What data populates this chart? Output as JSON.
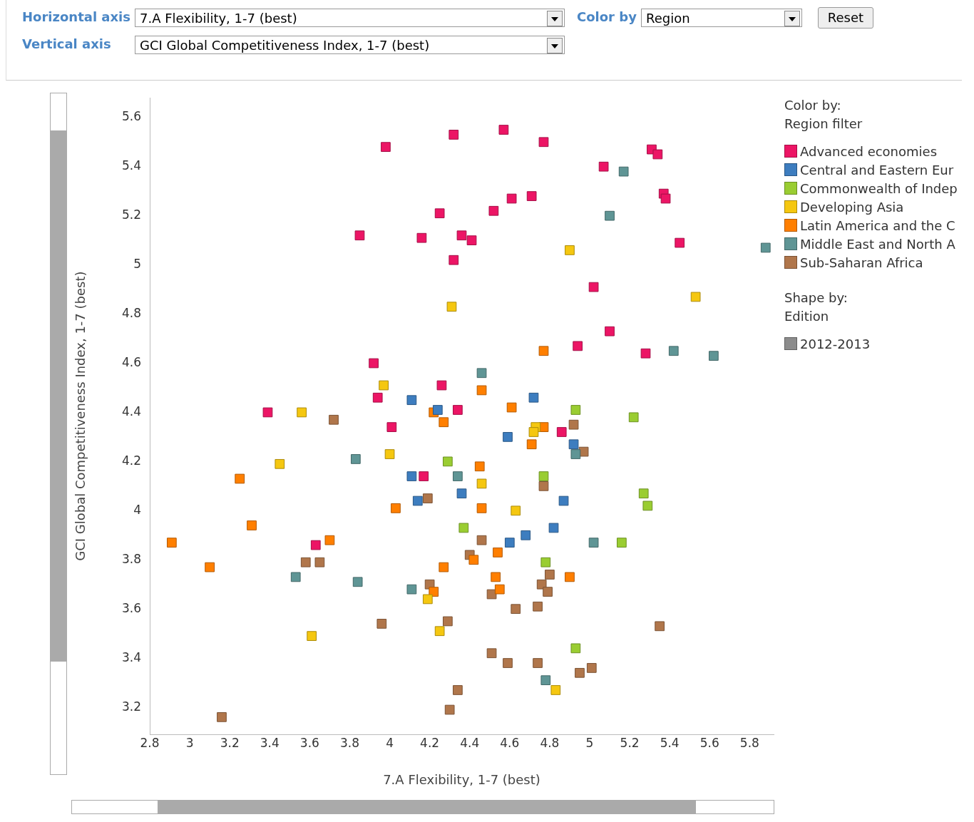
{
  "chart_data": {
    "type": "scatter",
    "xlabel": "7.A Flexibility, 1-7 (best)",
    "ylabel": "GCI Global Competitiveness Index, 1-7 (best)",
    "legend_title": "Color by:\nRegion filter",
    "legend": "right",
    "grid": false,
    "marker": "square",
    "xlim": [
      2.8,
      5.92
    ],
    "ylim": [
      3.09,
      5.68
    ],
    "xticks": [
      2.8,
      3,
      3.2,
      3.4,
      3.6,
      3.8,
      4,
      4.2,
      4.4,
      4.6,
      4.8,
      5,
      5.2,
      5.4,
      5.6,
      5.8
    ],
    "yticks": [
      3.2,
      3.4,
      3.6,
      3.8,
      4,
      4.2,
      4.4,
      4.6,
      4.8,
      5,
      5.2,
      5.4,
      5.6
    ],
    "annotations": [
      "Horizontal axis",
      "Vertical axis",
      "Color by",
      "Region",
      "Reset",
      "Shape by:\nEdition",
      "2012-2013",
      "7.A Flexibility, 1-7 (best)",
      "GCI Global Competitiveness Index, 1-7 (best)"
    ],
    "series": [
      {
        "name": "Advanced economies",
        "color": "#ec1565",
        "x": [
          3.98,
          4.32,
          4.57,
          4.77,
          5.07,
          5.31,
          5.34,
          5.37,
          5.38,
          5.45,
          5.02,
          5.1,
          4.94,
          5.28,
          4.52,
          4.61,
          4.71,
          4.25,
          3.85,
          4.16,
          4.36,
          4.41,
          4.32,
          3.92,
          4.26,
          3.94,
          4.01,
          4.34,
          3.39,
          4.17,
          3.63,
          4.86
        ],
        "values": [
          5.48,
          5.53,
          5.55,
          5.5,
          5.4,
          5.47,
          5.45,
          5.29,
          5.27,
          5.09,
          4.91,
          4.73,
          4.67,
          4.64,
          5.22,
          5.27,
          5.28,
          5.21,
          5.12,
          5.11,
          5.12,
          5.1,
          5.02,
          4.6,
          4.51,
          4.46,
          4.34,
          4.41,
          4.4,
          4.14,
          3.86,
          4.32
        ]
      },
      {
        "name": "Central and Eastern Eur",
        "color": "#3d7dbf",
        "x": [
          4.11,
          4.24,
          4.72,
          4.59,
          4.92,
          4.11,
          4.36,
          4.14,
          4.87,
          4.82,
          4.68,
          4.6
        ],
        "values": [
          4.45,
          4.41,
          4.46,
          4.3,
          4.27,
          4.14,
          4.07,
          4.04,
          4.04,
          3.93,
          3.9,
          3.87
        ]
      },
      {
        "name": "Commonwealth of Indep",
        "color": "#9acd32",
        "x": [
          4.93,
          5.22,
          4.29,
          4.77,
          5.27,
          5.29,
          4.37,
          5.16,
          4.78,
          4.93
        ],
        "values": [
          4.41,
          4.38,
          4.2,
          4.14,
          4.07,
          4.02,
          3.93,
          3.87,
          3.79,
          3.44
        ]
      },
      {
        "name": "Developing Asia",
        "color": "#f5c710",
        "x": [
          4.9,
          5.53,
          4.31,
          3.97,
          3.56,
          3.45,
          4,
          4.46,
          4.63,
          4.73,
          4.72,
          4.19,
          4.25,
          3.61,
          4.83
        ],
        "values": [
          5.06,
          4.87,
          4.83,
          4.51,
          4.4,
          4.19,
          4.23,
          4.11,
          4,
          4.34,
          4.32,
          3.64,
          3.51,
          3.49,
          3.27
        ]
      },
      {
        "name": "Latin America and the C",
        "color": "#ff7f00",
        "x": [
          4.77,
          4.46,
          4.61,
          4.22,
          4.27,
          4.77,
          4.71,
          4.45,
          3.25,
          4.03,
          4.46,
          3.31,
          2.91,
          3.1,
          3.7,
          4.27,
          4.42,
          4.54,
          4.53,
          4.55,
          4.22,
          4.9
        ],
        "values": [
          4.65,
          4.49,
          4.42,
          4.4,
          4.36,
          4.34,
          4.27,
          4.18,
          4.13,
          4.01,
          4.01,
          3.94,
          3.87,
          3.77,
          3.88,
          3.77,
          3.8,
          3.83,
          3.73,
          3.68,
          3.67,
          3.73
        ]
      },
      {
        "name": "Middle East and North A",
        "color": "#5f9595",
        "x": [
          5.17,
          5.1,
          5.88,
          5.42,
          5.62,
          4.46,
          3.83,
          4.34,
          4.93,
          5.02,
          3.53,
          3.84,
          4.11,
          4.78
        ],
        "values": [
          5.38,
          5.2,
          5.07,
          4.65,
          4.63,
          4.56,
          4.21,
          4.14,
          4.23,
          3.87,
          3.73,
          3.71,
          3.68,
          3.31
        ]
      },
      {
        "name": "Sub-Saharan Africa",
        "color": "#b0764b",
        "x": [
          3.72,
          4.92,
          4.97,
          4.19,
          4.77,
          3.58,
          3.65,
          4.46,
          4.4,
          4.8,
          4.76,
          4.79,
          4.2,
          4.51,
          4.63,
          4.74,
          3.96,
          4.29,
          5.35,
          4.51,
          4.59,
          4.74,
          4.95,
          5.01,
          4.34,
          4.3,
          3.16
        ],
        "values": [
          4.37,
          4.35,
          4.24,
          4.05,
          4.1,
          3.79,
          3.79,
          3.88,
          3.82,
          3.74,
          3.7,
          3.67,
          3.7,
          3.66,
          3.6,
          3.61,
          3.54,
          3.55,
          3.53,
          3.42,
          3.38,
          3.38,
          3.34,
          3.36,
          3.27,
          3.19,
          3.16
        ]
      }
    ]
  }
}
